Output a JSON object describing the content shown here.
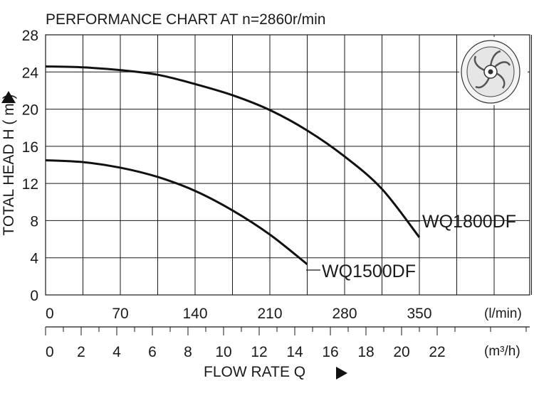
{
  "chart_data": {
    "type": "line",
    "title": "PERFORMANCE  CHART  AT  n=2860r/min",
    "ylabel": "TOTAL HEAD  H ( m )",
    "xlabel": "FLOW  RATE  Q",
    "ylim": [
      0,
      28
    ],
    "xlim": [
      0,
      455
    ],
    "y_ticks": [
      "0",
      "4",
      "8",
      "12",
      "16",
      "20",
      "24",
      "28"
    ],
    "x_ticks_lmin": [
      "0",
      "70",
      "140",
      "210",
      "280",
      "350"
    ],
    "x_unit_lmin": "(l/min)",
    "x_ticks_m3h": [
      "0",
      "2",
      "4",
      "6",
      "8",
      "10",
      "12",
      "14",
      "16",
      "18",
      "20",
      "22"
    ],
    "x_unit_m3h": "(m³/h)",
    "series": [
      {
        "name": "WQ1800DF",
        "x": [
          0,
          35,
          70,
          105,
          140,
          175,
          210,
          245,
          280,
          315,
          350
        ],
        "y": [
          24.6,
          24.5,
          24.2,
          23.7,
          22.7,
          21.5,
          19.9,
          17.7,
          14.9,
          11.4,
          6.2
        ]
      },
      {
        "name": "WQ1500DF",
        "x": [
          0,
          35,
          70,
          105,
          140,
          175,
          210,
          245
        ],
        "y": [
          14.5,
          14.3,
          13.7,
          12.7,
          11.2,
          9.1,
          6.5,
          3.3
        ]
      }
    ]
  },
  "icons": {
    "impeller": "impeller-icon"
  }
}
